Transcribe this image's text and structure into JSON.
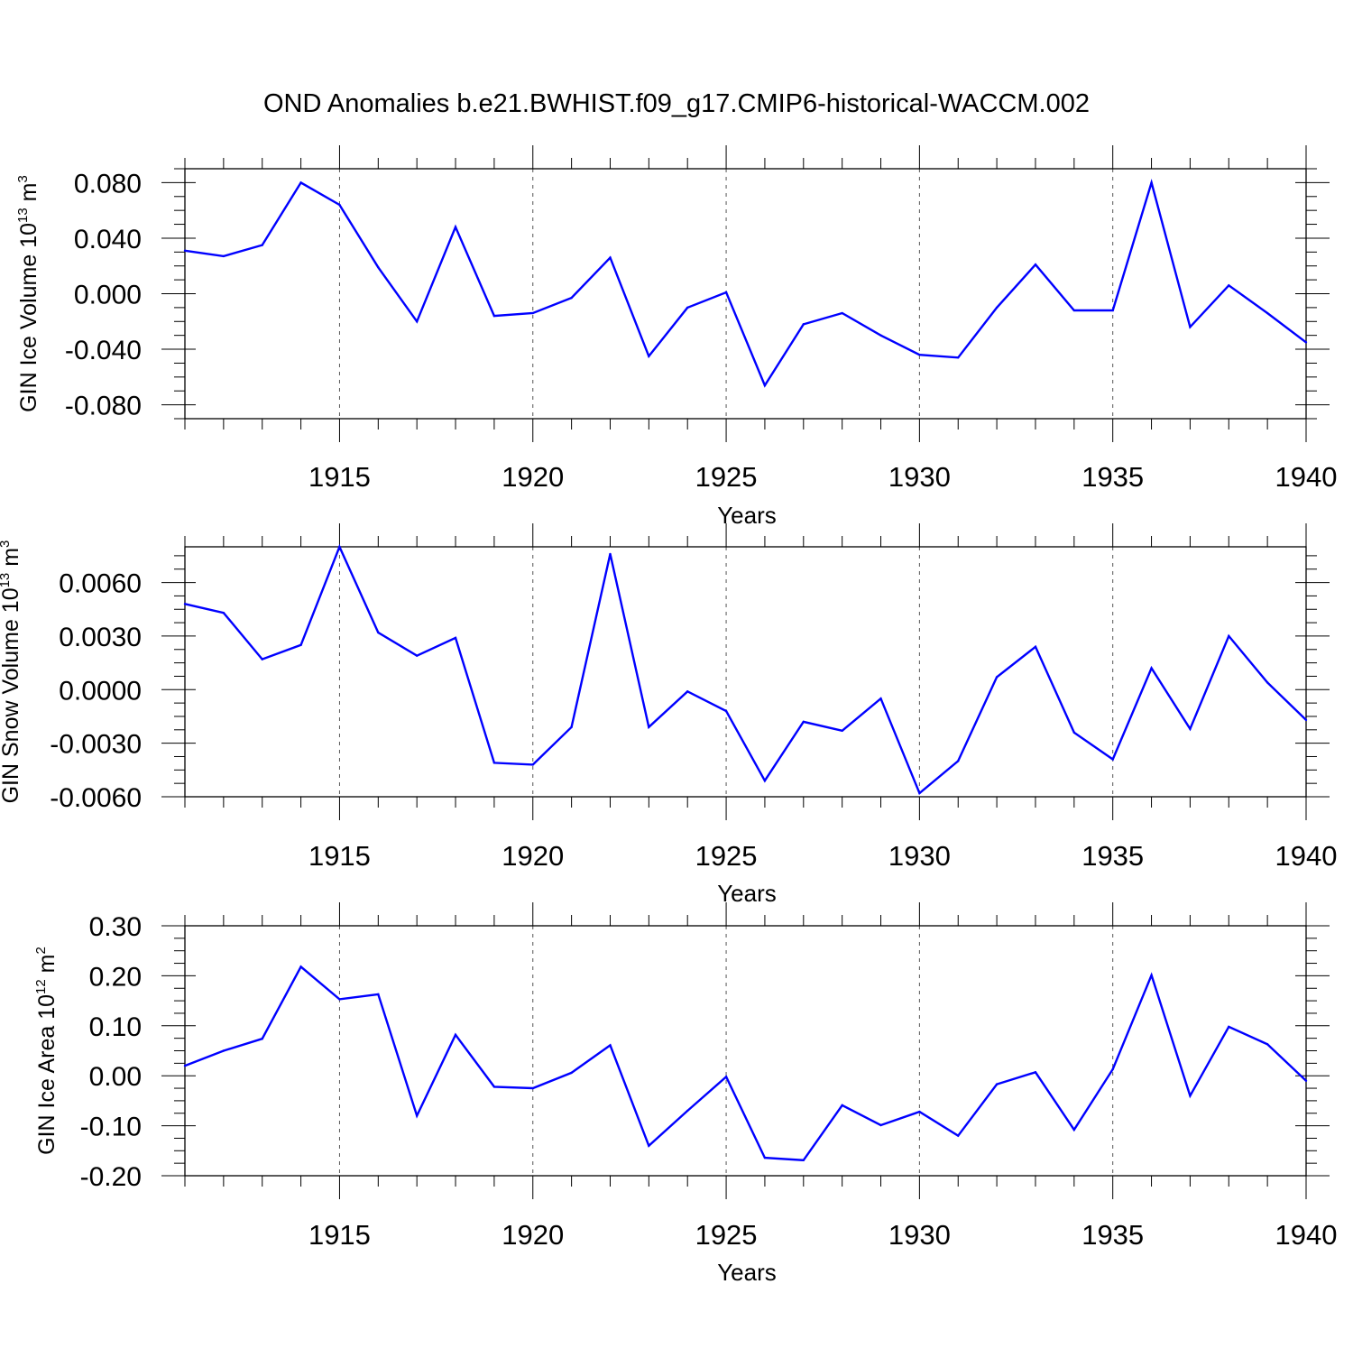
{
  "title": "OND Anomalies b.e21.BWHIST.f09_g17.CMIP6-historical-WACCM.002",
  "chart_data": [
    {
      "type": "line",
      "ylabel": "GIN Ice Volume 10",
      "ylabel_exp": "13",
      "ylabel_unit": "m",
      "ylabel_unit_exp": "3",
      "xlabel": "Years",
      "xlim": [
        1911,
        1940
      ],
      "ylim": [
        -0.09,
        0.09
      ],
      "xticks": [
        "1915",
        "1920",
        "1925",
        "1930",
        "1935",
        "1940"
      ],
      "yticks": [
        "0.080",
        "0.040",
        "0.000",
        "-0.040",
        "-0.080"
      ],
      "ytick_values": [
        0.08,
        0.04,
        0.0,
        -0.04,
        -0.08
      ],
      "line_color": "#0000ff",
      "x": [
        1911,
        1912,
        1913,
        1914,
        1915,
        1916,
        1917,
        1918,
        1919,
        1920,
        1921,
        1922,
        1923,
        1924,
        1925,
        1926,
        1927,
        1928,
        1929,
        1930,
        1931,
        1932,
        1933,
        1934,
        1935,
        1936,
        1937,
        1938,
        1939,
        1940
      ],
      "values": [
        0.031,
        0.027,
        0.035,
        0.08,
        0.064,
        0.019,
        -0.02,
        0.048,
        -0.016,
        -0.014,
        -0.003,
        0.026,
        -0.045,
        -0.01,
        0.001,
        -0.066,
        -0.022,
        -0.014,
        -0.03,
        -0.044,
        -0.046,
        -0.01,
        0.021,
        -0.012,
        -0.012,
        0.08,
        -0.024,
        0.006,
        -0.014,
        -0.035
      ]
    },
    {
      "type": "line",
      "ylabel": "GIN Snow Volume 10",
      "ylabel_exp": "13",
      "ylabel_unit": "m",
      "ylabel_unit_exp": "3",
      "xlabel": "Years",
      "xlim": [
        1911,
        1940
      ],
      "ylim": [
        -0.006,
        0.008
      ],
      "xticks": [
        "1915",
        "1920",
        "1925",
        "1930",
        "1935",
        "1940"
      ],
      "yticks": [
        "0.0060",
        "0.0030",
        "0.0000",
        "-0.0030",
        "-0.0060"
      ],
      "ytick_values": [
        0.006,
        0.003,
        0.0,
        -0.003,
        -0.006
      ],
      "line_color": "#0000ff",
      "x": [
        1911,
        1912,
        1913,
        1914,
        1915,
        1916,
        1917,
        1918,
        1919,
        1920,
        1921,
        1922,
        1923,
        1924,
        1925,
        1926,
        1927,
        1928,
        1929,
        1930,
        1931,
        1932,
        1933,
        1934,
        1935,
        1936,
        1937,
        1938,
        1939,
        1940
      ],
      "values": [
        0.0048,
        0.0043,
        0.0017,
        0.0025,
        0.008,
        0.0032,
        0.0019,
        0.0029,
        -0.0041,
        -0.0042,
        -0.0021,
        0.0076,
        -0.0021,
        -0.0001,
        -0.0012,
        -0.0051,
        -0.0018,
        -0.0023,
        -0.0005,
        -0.0058,
        -0.004,
        0.0007,
        0.0024,
        -0.0024,
        -0.0039,
        0.0012,
        -0.0022,
        0.003,
        0.0004,
        -0.0017
      ]
    },
    {
      "type": "line",
      "ylabel": "GIN Ice Area 10",
      "ylabel_exp": "12",
      "ylabel_unit": "m",
      "ylabel_unit_exp": "2",
      "xlabel": "Years",
      "xlim": [
        1911,
        1940
      ],
      "ylim": [
        -0.2,
        0.3
      ],
      "xticks": [
        "1915",
        "1920",
        "1925",
        "1930",
        "1935",
        "1940"
      ],
      "yticks": [
        "0.30",
        "0.20",
        "0.10",
        "0.00",
        "-0.10",
        "-0.20"
      ],
      "ytick_values": [
        0.3,
        0.2,
        0.1,
        0.0,
        -0.1,
        -0.2
      ],
      "line_color": "#0000ff",
      "x": [
        1911,
        1912,
        1913,
        1914,
        1915,
        1916,
        1917,
        1918,
        1919,
        1920,
        1921,
        1922,
        1923,
        1924,
        1925,
        1926,
        1927,
        1928,
        1929,
        1930,
        1931,
        1932,
        1933,
        1934,
        1935,
        1936,
        1937,
        1938,
        1939,
        1940
      ],
      "values": [
        0.02,
        0.05,
        0.074,
        0.218,
        0.153,
        0.163,
        -0.08,
        0.082,
        -0.022,
        -0.025,
        0.006,
        0.061,
        -0.14,
        -0.07,
        -0.002,
        -0.164,
        -0.169,
        -0.059,
        -0.099,
        -0.072,
        -0.12,
        -0.017,
        0.007,
        -0.108,
        0.013,
        0.201,
        -0.04,
        0.098,
        0.063,
        -0.01
      ]
    }
  ]
}
